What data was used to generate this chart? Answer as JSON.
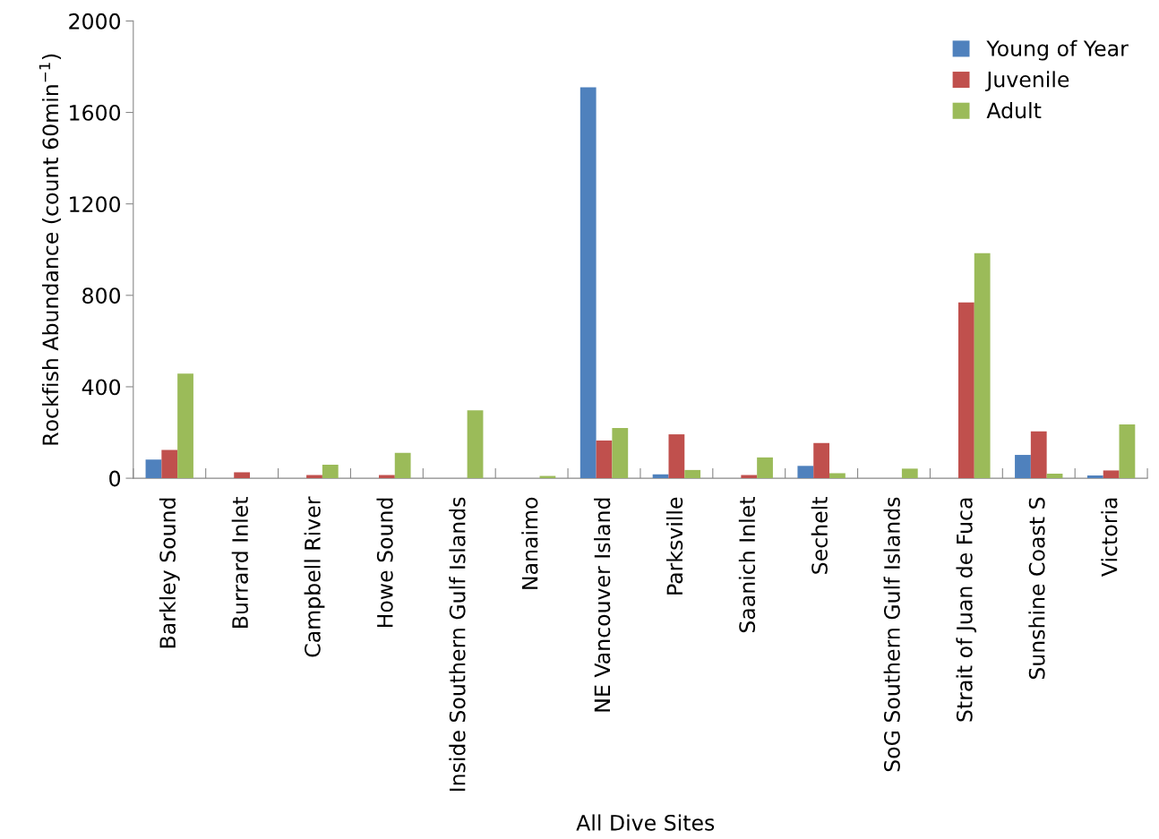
{
  "chart_data": {
    "type": "bar",
    "xlabel": "All Dive Sites",
    "ylabel": "Rockfish Abundance (count 60min$^{−1}$)",
    "categories": [
      "Barkley Sound",
      "Burrard Inlet",
      "Campbell River",
      "Howe Sound",
      "Inside Southern Gulf Islands",
      "Nanaimo",
      "NE Vancouver Island",
      "Parksville",
      "Saanich Inlet",
      "Sechelt",
      "SoG Southern Gulf Islands",
      "Strait of Juan de Fuca",
      "Sunshine Coast S",
      "Victoria"
    ],
    "series": [
      {
        "name": "Young of Year",
        "color": "#4f81bd",
        "values": [
          82,
          0,
          0,
          0,
          0,
          0,
          1710,
          17,
          0,
          54,
          0,
          0,
          102,
          12
        ]
      },
      {
        "name": "Juvenile",
        "color": "#c0504d",
        "values": [
          124,
          26,
          14,
          14,
          null,
          null,
          165,
          192,
          14,
          154,
          0,
          769,
          205,
          34
        ]
      },
      {
        "name": "Adult",
        "color": "#9bbb59",
        "values": [
          458,
          0,
          59,
          111,
          297,
          10,
          220,
          36,
          91,
          22,
          42,
          984,
          20,
          235
        ]
      }
    ],
    "ylim": [
      0,
      2000
    ],
    "yticks": [
      0,
      400,
      800,
      1200,
      1600,
      2000
    ],
    "grid": false,
    "legend": "top right"
  }
}
